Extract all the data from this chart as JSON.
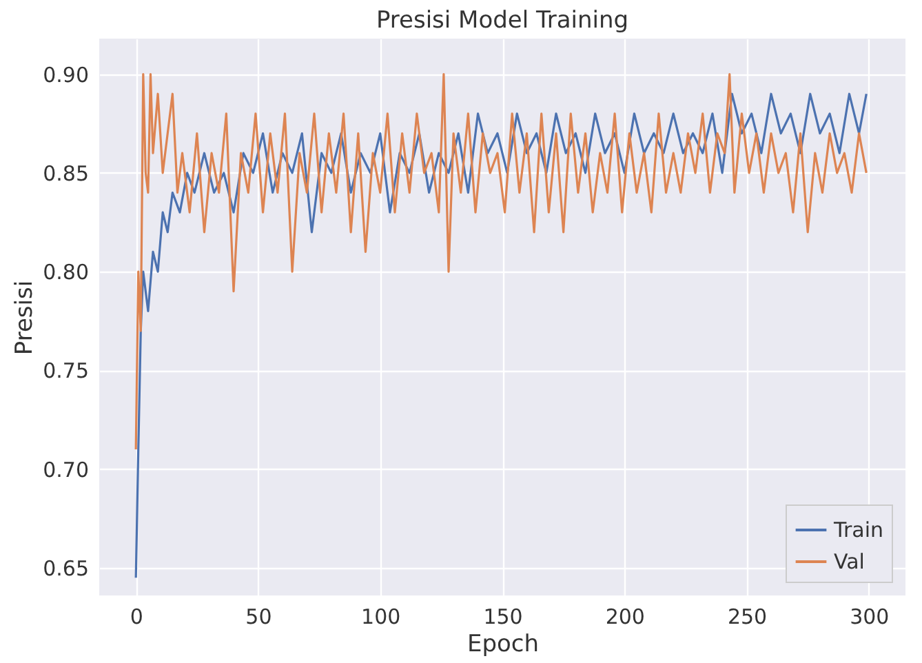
{
  "chart_data": {
    "type": "line",
    "title": "Presisi Model Training",
    "xlabel": "Epoch",
    "ylabel": "Presisi",
    "xlim": [
      -15,
      315
    ],
    "ylim": [
      0.636,
      0.918
    ],
    "xticks": [
      0,
      50,
      100,
      150,
      200,
      250,
      300
    ],
    "yticks": [
      0.65,
      {
        "value": 0.7,
        "label": "0.70"
      },
      0.75,
      {
        "value": 0.8,
        "label": "0.80"
      },
      0.85,
      {
        "value": 0.9,
        "label": "0.90"
      }
    ],
    "grid": true,
    "legend": "bottom right",
    "line_style": "solid",
    "series": [
      {
        "name": "Train",
        "color": "#4c72b0",
        "x": [
          0,
          1,
          2,
          3,
          5,
          7,
          9,
          11,
          13,
          15,
          18,
          21,
          24,
          28,
          32,
          36,
          40,
          44,
          48,
          52,
          56,
          60,
          64,
          68,
          72,
          76,
          80,
          84,
          88,
          92,
          96,
          100,
          104,
          108,
          112,
          116,
          120,
          124,
          128,
          132,
          136,
          140,
          144,
          148,
          152,
          156,
          160,
          164,
          168,
          172,
          176,
          180,
          184,
          188,
          192,
          196,
          200,
          204,
          208,
          212,
          216,
          220,
          224,
          228,
          232,
          236,
          240,
          244,
          248,
          252,
          256,
          260,
          264,
          268,
          272,
          276,
          280,
          284,
          288,
          292,
          296,
          299
        ],
        "values": [
          0.645,
          0.71,
          0.77,
          0.8,
          0.78,
          0.81,
          0.8,
          0.83,
          0.82,
          0.84,
          0.83,
          0.85,
          0.84,
          0.86,
          0.84,
          0.85,
          0.83,
          0.86,
          0.85,
          0.87,
          0.84,
          0.86,
          0.85,
          0.87,
          0.82,
          0.86,
          0.85,
          0.87,
          0.84,
          0.86,
          0.85,
          0.87,
          0.83,
          0.86,
          0.85,
          0.87,
          0.84,
          0.86,
          0.85,
          0.87,
          0.84,
          0.88,
          0.86,
          0.87,
          0.85,
          0.88,
          0.86,
          0.87,
          0.85,
          0.88,
          0.86,
          0.87,
          0.85,
          0.88,
          0.86,
          0.87,
          0.85,
          0.88,
          0.86,
          0.87,
          0.86,
          0.88,
          0.86,
          0.87,
          0.86,
          0.88,
          0.85,
          0.89,
          0.87,
          0.88,
          0.86,
          0.89,
          0.87,
          0.88,
          0.86,
          0.89,
          0.87,
          0.88,
          0.86,
          0.89,
          0.87,
          0.89
        ]
      },
      {
        "name": "Val",
        "color": "#dd8452",
        "x": [
          0,
          1,
          2,
          3,
          4,
          5,
          6,
          7,
          9,
          11,
          13,
          15,
          17,
          19,
          22,
          25,
          28,
          31,
          34,
          37,
          40,
          43,
          46,
          49,
          52,
          55,
          58,
          61,
          64,
          67,
          70,
          73,
          76,
          79,
          82,
          85,
          88,
          91,
          94,
          97,
          100,
          103,
          106,
          109,
          112,
          115,
          118,
          121,
          124,
          126,
          128,
          130,
          133,
          136,
          139,
          142,
          145,
          148,
          151,
          154,
          157,
          160,
          163,
          166,
          169,
          172,
          175,
          178,
          181,
          184,
          187,
          190,
          193,
          196,
          199,
          202,
          205,
          208,
          211,
          214,
          217,
          220,
          223,
          226,
          229,
          232,
          235,
          238,
          241,
          243,
          245,
          248,
          251,
          254,
          257,
          260,
          263,
          266,
          269,
          272,
          275,
          278,
          281,
          284,
          287,
          290,
          293,
          296,
          299
        ],
        "values": [
          0.71,
          0.8,
          0.77,
          0.9,
          0.85,
          0.84,
          0.9,
          0.86,
          0.89,
          0.85,
          0.87,
          0.89,
          0.84,
          0.86,
          0.83,
          0.87,
          0.82,
          0.86,
          0.84,
          0.88,
          0.79,
          0.86,
          0.84,
          0.88,
          0.83,
          0.87,
          0.84,
          0.88,
          0.8,
          0.86,
          0.84,
          0.88,
          0.83,
          0.87,
          0.84,
          0.88,
          0.82,
          0.87,
          0.81,
          0.86,
          0.84,
          0.88,
          0.83,
          0.87,
          0.84,
          0.88,
          0.85,
          0.86,
          0.83,
          0.9,
          0.8,
          0.87,
          0.84,
          0.88,
          0.83,
          0.87,
          0.85,
          0.86,
          0.83,
          0.88,
          0.84,
          0.87,
          0.82,
          0.88,
          0.83,
          0.87,
          0.82,
          0.88,
          0.84,
          0.87,
          0.83,
          0.86,
          0.84,
          0.88,
          0.83,
          0.87,
          0.84,
          0.86,
          0.83,
          0.88,
          0.84,
          0.86,
          0.84,
          0.87,
          0.85,
          0.88,
          0.84,
          0.87,
          0.86,
          0.9,
          0.84,
          0.88,
          0.85,
          0.87,
          0.84,
          0.87,
          0.85,
          0.86,
          0.83,
          0.87,
          0.82,
          0.86,
          0.84,
          0.87,
          0.85,
          0.86,
          0.84,
          0.87,
          0.85
        ]
      }
    ]
  }
}
